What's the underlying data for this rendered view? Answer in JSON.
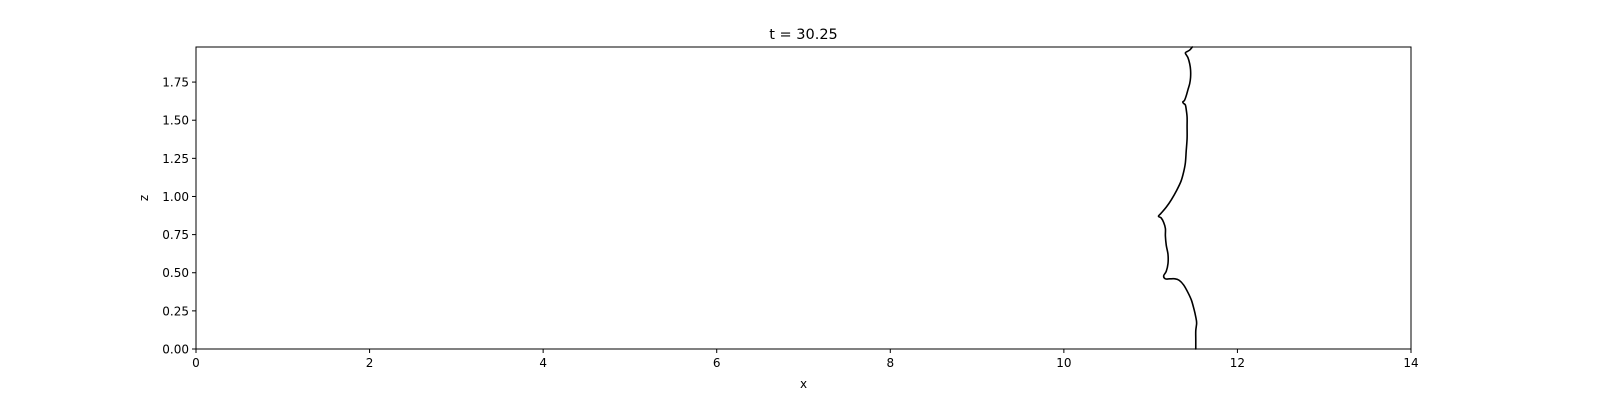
{
  "chart_data": {
    "type": "line",
    "title": "t = 30.25",
    "xlabel": "x",
    "ylabel": "z",
    "xlim": [
      0,
      14
    ],
    "ylim": [
      0,
      1.98
    ],
    "grid": false,
    "legend": "none",
    "xticks": [
      0,
      2,
      4,
      6,
      8,
      10,
      12,
      14
    ],
    "xtick_labels": [
      "0",
      "2",
      "4",
      "6",
      "8",
      "10",
      "12",
      "14"
    ],
    "yticks": [
      0.0,
      0.25,
      0.5,
      0.75,
      1.0,
      1.25,
      1.5,
      1.75
    ],
    "ytick_labels": [
      "0.00",
      "0.25",
      "0.50",
      "0.75",
      "1.00",
      "1.25",
      "1.50",
      "1.75"
    ],
    "line_color": "#000000",
    "series": [
      {
        "x": [
          11.52,
          11.52,
          11.52,
          11.53,
          11.52,
          11.5,
          11.47,
          11.43,
          11.38,
          11.33,
          11.28,
          11.22,
          11.17,
          11.15,
          11.18,
          11.2,
          11.2,
          11.18,
          11.17,
          11.17,
          11.15,
          11.12,
          11.09,
          11.12,
          11.18,
          11.24,
          11.3,
          11.35,
          11.38,
          11.4,
          11.41,
          11.42,
          11.42,
          11.42,
          11.41,
          11.4,
          11.38,
          11.37,
          11.39,
          11.41,
          11.43,
          11.45,
          11.46,
          11.46,
          11.45,
          11.43,
          11.4,
          11.42,
          11.45,
          11.48
        ],
        "y": [
          0.0,
          0.06,
          0.12,
          0.17,
          0.21,
          0.26,
          0.32,
          0.37,
          0.42,
          0.45,
          0.46,
          0.46,
          0.46,
          0.48,
          0.51,
          0.56,
          0.62,
          0.68,
          0.74,
          0.79,
          0.83,
          0.86,
          0.87,
          0.89,
          0.93,
          0.98,
          1.04,
          1.1,
          1.16,
          1.22,
          1.3,
          1.38,
          1.46,
          1.52,
          1.57,
          1.6,
          1.61,
          1.62,
          1.63,
          1.66,
          1.7,
          1.74,
          1.78,
          1.83,
          1.87,
          1.91,
          1.94,
          1.95,
          1.96,
          1.98
        ]
      }
    ]
  }
}
